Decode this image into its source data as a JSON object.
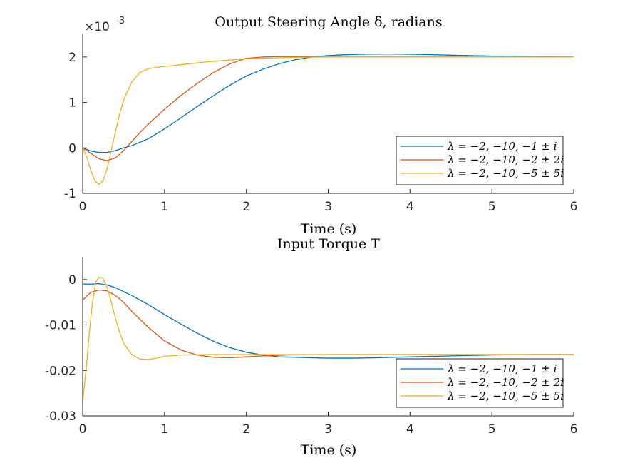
{
  "chart_data": [
    {
      "type": "line",
      "title": "Output Steering Angle δ, radians",
      "xlabel": "Time (s)",
      "ylabel": "",
      "y_exponent_label": "×10",
      "y_exponent_power": "-3",
      "xlim": [
        0,
        6
      ],
      "ylim": [
        -1,
        2.5
      ],
      "xticks": [
        0,
        1,
        2,
        3,
        4,
        5,
        6
      ],
      "yticks": [
        -1,
        0,
        1,
        2
      ],
      "xtick_labels": [
        "0",
        "1",
        "2",
        "3",
        "4",
        "5",
        "6"
      ],
      "ytick_labels": [
        "-1",
        "0",
        "1",
        "2"
      ],
      "grid": false,
      "legend_position": "lower-right",
      "series": [
        {
          "name": "λ = −2, −10, −1 ± i",
          "color": "#0072BD",
          "x": [
            0,
            0.1,
            0.2,
            0.3,
            0.4,
            0.5,
            0.6,
            0.8,
            1.0,
            1.2,
            1.4,
            1.6,
            1.8,
            2.0,
            2.2,
            2.4,
            2.6,
            2.8,
            3.0,
            3.2,
            3.4,
            3.6,
            3.8,
            4.0,
            4.2,
            4.5,
            5.0,
            5.5,
            6.0
          ],
          "y": [
            0,
            -0.07,
            -0.1,
            -0.1,
            -0.06,
            0.0,
            0.05,
            0.2,
            0.42,
            0.66,
            0.91,
            1.15,
            1.38,
            1.58,
            1.73,
            1.85,
            1.94,
            2.0,
            2.03,
            2.05,
            2.06,
            2.065,
            2.065,
            2.06,
            2.055,
            2.04,
            2.02,
            2.005,
            2.0
          ]
        },
        {
          "name": "λ = −2, −10, −2 ± 2i",
          "color": "#D95319",
          "x": [
            0,
            0.1,
            0.2,
            0.3,
            0.4,
            0.5,
            0.6,
            0.7,
            0.8,
            1.0,
            1.2,
            1.4,
            1.6,
            1.8,
            2.0,
            2.2,
            2.4,
            2.6,
            2.8,
            3.0,
            3.5,
            4.0,
            5.0,
            6.0
          ],
          "y": [
            0,
            -0.12,
            -0.24,
            -0.28,
            -0.22,
            -0.06,
            0.14,
            0.34,
            0.52,
            0.85,
            1.15,
            1.42,
            1.66,
            1.85,
            1.97,
            2.0,
            2.01,
            2.01,
            2.005,
            2.0,
            2.0,
            2.0,
            2.0,
            2.0
          ]
        },
        {
          "name": "λ = −2, −10, −5 ± 5i",
          "color": "#EDB120",
          "x": [
            0,
            0.05,
            0.1,
            0.15,
            0.2,
            0.25,
            0.3,
            0.35,
            0.4,
            0.45,
            0.5,
            0.6,
            0.7,
            0.8,
            0.9,
            1.0,
            1.2,
            1.5,
            2.0,
            2.5,
            3.0,
            4.0,
            5.0,
            6.0
          ],
          "y": [
            0,
            -0.2,
            -0.5,
            -0.73,
            -0.8,
            -0.72,
            -0.45,
            -0.05,
            0.35,
            0.73,
            1.05,
            1.45,
            1.66,
            1.74,
            1.77,
            1.79,
            1.83,
            1.89,
            1.96,
            1.99,
            2.0,
            2.0,
            2.0,
            2.0
          ]
        }
      ]
    },
    {
      "type": "line",
      "title": "Input Torque T",
      "xlabel": "Time (s)",
      "ylabel": "",
      "xlim": [
        0,
        6
      ],
      "ylim": [
        -0.03,
        0.005
      ],
      "xticks": [
        0,
        1,
        2,
        3,
        4,
        5,
        6
      ],
      "yticks": [
        0,
        -0.01,
        -0.02,
        -0.03
      ],
      "xtick_labels": [
        "0",
        "1",
        "2",
        "3",
        "4",
        "5",
        "6"
      ],
      "ytick_labels": [
        "0",
        "-0.01",
        "-0.02",
        "-0.03"
      ],
      "grid": false,
      "legend_position": "lower-right",
      "series": [
        {
          "name": "λ = −2, −10, −1 ± i",
          "color": "#0072BD",
          "x": [
            0,
            0.1,
            0.2,
            0.3,
            0.4,
            0.6,
            0.8,
            1.0,
            1.2,
            1.4,
            1.6,
            1.8,
            2.0,
            2.2,
            2.4,
            2.6,
            2.8,
            3.0,
            3.3,
            3.6,
            4.0,
            4.5,
            5.0,
            5.5,
            6.0
          ],
          "y": [
            -0.001,
            -0.001,
            -0.0009,
            -0.0012,
            -0.0018,
            -0.0035,
            -0.0055,
            -0.0077,
            -0.0098,
            -0.0118,
            -0.0136,
            -0.015,
            -0.016,
            -0.0166,
            -0.017,
            -0.0171,
            -0.0172,
            -0.0173,
            -0.0173,
            -0.0172,
            -0.017,
            -0.0168,
            -0.0166,
            -0.0165,
            -0.0165
          ]
        },
        {
          "name": "λ = −2, −10, −2 ± 2i",
          "color": "#D95319",
          "x": [
            0,
            0.1,
            0.2,
            0.3,
            0.4,
            0.5,
            0.6,
            0.8,
            1.0,
            1.2,
            1.4,
            1.6,
            1.8,
            2.0,
            2.2,
            2.5,
            3.0,
            3.5,
            4.0,
            5.0,
            6.0
          ],
          "y": [
            -0.0045,
            -0.0028,
            -0.0023,
            -0.0025,
            -0.0035,
            -0.005,
            -0.007,
            -0.0105,
            -0.0135,
            -0.0155,
            -0.0166,
            -0.0171,
            -0.0172,
            -0.017,
            -0.0168,
            -0.0166,
            -0.0165,
            -0.0165,
            -0.0165,
            -0.0165,
            -0.0165
          ]
        },
        {
          "name": "λ = −2, −10, −5 ± 5i",
          "color": "#EDB120",
          "x": [
            0,
            0.04,
            0.08,
            0.12,
            0.16,
            0.2,
            0.25,
            0.3,
            0.35,
            0.4,
            0.45,
            0.5,
            0.6,
            0.7,
            0.8,
            0.9,
            1.0,
            1.2,
            1.5,
            2.0,
            3.0,
            4.0,
            5.0,
            6.0
          ],
          "y": [
            -0.027,
            -0.02,
            -0.012,
            -0.005,
            -0.0005,
            0.0005,
            0.0003,
            -0.0018,
            -0.005,
            -0.0085,
            -0.0115,
            -0.014,
            -0.0165,
            -0.0175,
            -0.0176,
            -0.0173,
            -0.0169,
            -0.0166,
            -0.0165,
            -0.0165,
            -0.0165,
            -0.0165,
            -0.0165,
            -0.0165
          ]
        }
      ]
    }
  ]
}
